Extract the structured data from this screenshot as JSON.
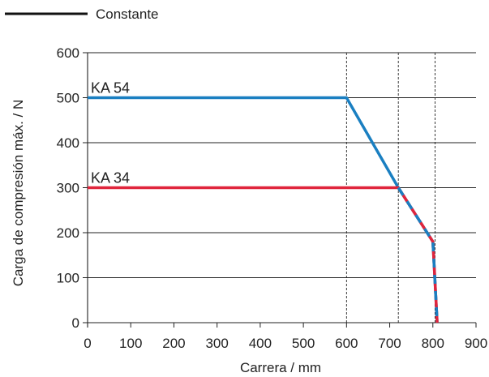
{
  "chart_data": {
    "type": "line",
    "title": "",
    "xlabel": "Carrera / mm",
    "ylabel": "Carga de compresión máx. / N",
    "xlim": [
      0,
      900
    ],
    "ylim": [
      0,
      600
    ],
    "x_ticks": [
      0,
      100,
      200,
      300,
      400,
      500,
      600,
      700,
      800,
      900
    ],
    "y_ticks": [
      0,
      100,
      200,
      300,
      400,
      500,
      600
    ],
    "x_tick_labels": [
      "0",
      "100",
      "200",
      "300",
      "400",
      "500",
      "600",
      "700",
      "800",
      "900"
    ],
    "y_tick_labels": [
      "0",
      "100",
      "200",
      "300",
      "400",
      "500",
      "600"
    ],
    "grid": "horizontal",
    "vertical_reference_lines": [
      600,
      720,
      805
    ],
    "legend": {
      "placement": "top-left",
      "entries": [
        {
          "label": "Constante",
          "color": "#111111"
        }
      ]
    },
    "series": [
      {
        "name": "KA 54",
        "color": "#1a7fc1",
        "points": [
          [
            0,
            500
          ],
          [
            600,
            500
          ],
          [
            720,
            300
          ],
          [
            800,
            180
          ],
          [
            810,
            0
          ]
        ]
      },
      {
        "name": "KA 34",
        "color": "#e0253c",
        "dash_overlay_color": "#1a7fc1",
        "points": [
          [
            0,
            300
          ],
          [
            720,
            300
          ],
          [
            800,
            180
          ],
          [
            810,
            0
          ]
        ]
      }
    ]
  }
}
